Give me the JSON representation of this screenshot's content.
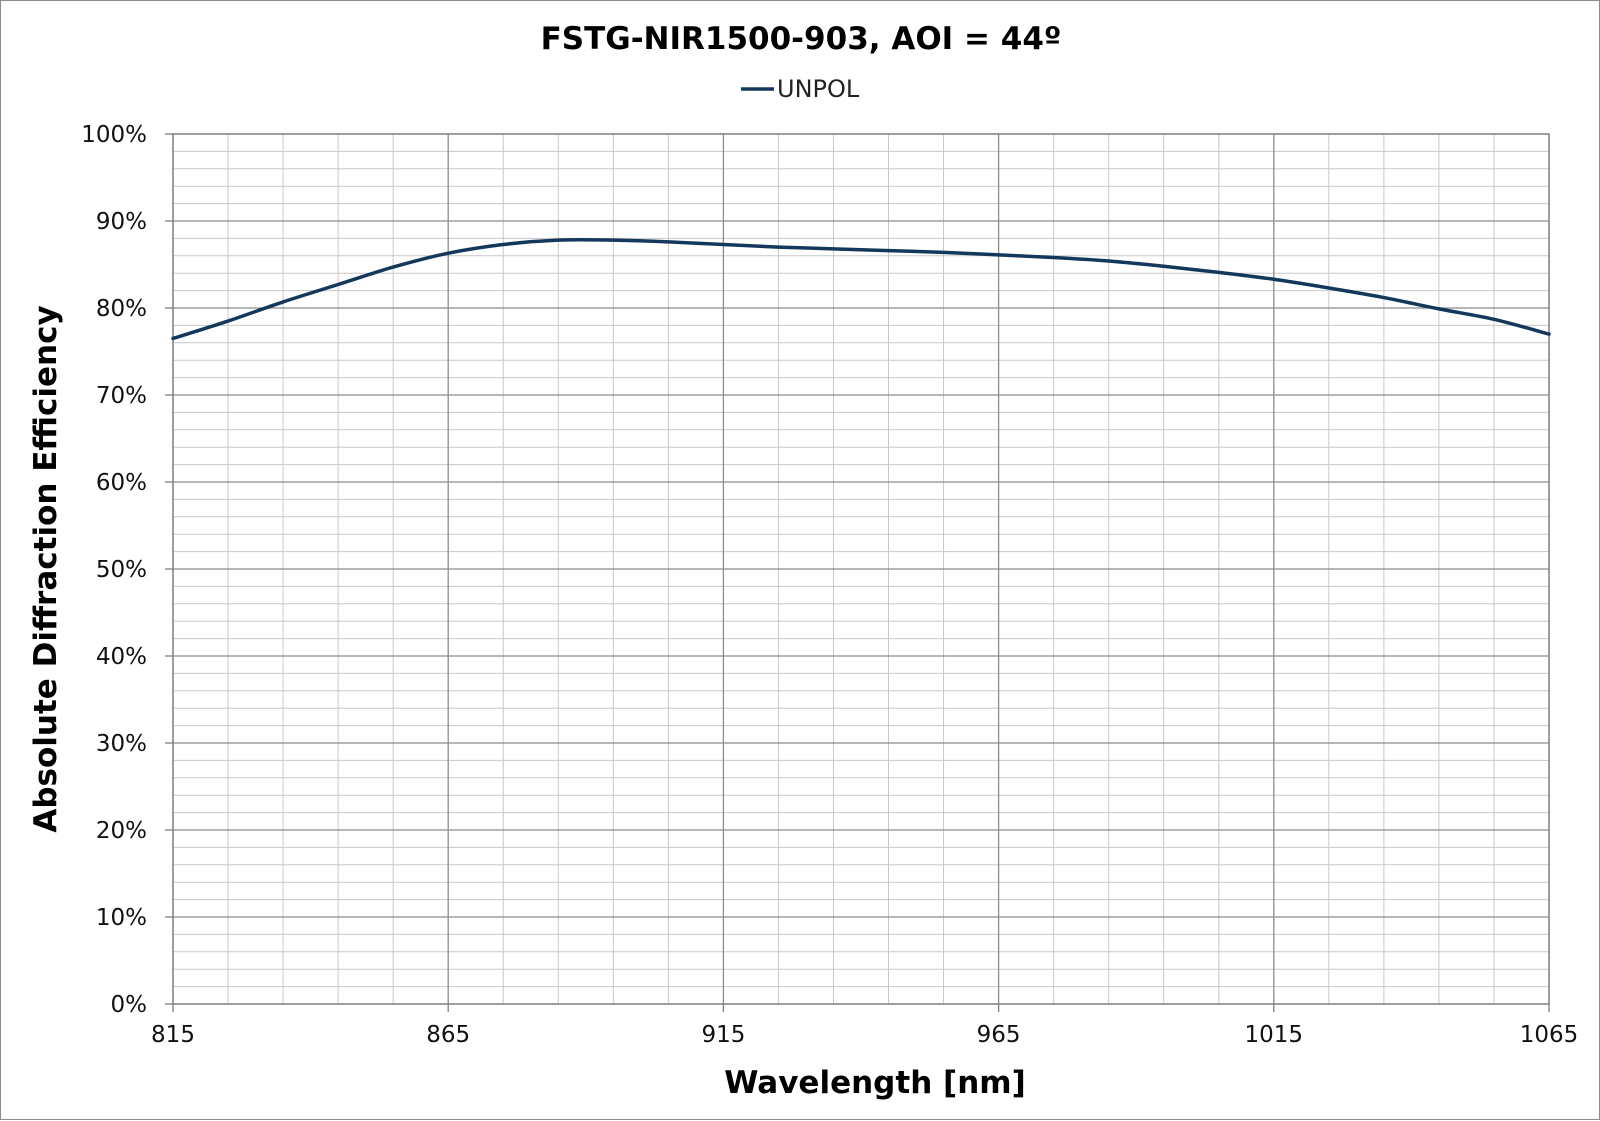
{
  "chart_data": {
    "type": "line",
    "title": "FSTG-NIR1500-903, AOI = 44º",
    "xlabel": "Wavelength [nm]",
    "ylabel": "Absolute Diffraction Efficiency",
    "xlim": [
      815,
      1065
    ],
    "ylim": [
      0,
      100
    ],
    "x_ticks": [
      "815",
      "865",
      "915",
      "965",
      "1015",
      "1065"
    ],
    "y_ticks": [
      "0%",
      "10%",
      "20%",
      "30%",
      "40%",
      "50%",
      "60%",
      "70%",
      "80%",
      "90%",
      "100%"
    ],
    "grid": "on",
    "legend_position": "top-center",
    "series": [
      {
        "name": "UNPOL",
        "color": "#14385c",
        "x": [
          815,
          825,
          835,
          845,
          855,
          865,
          875,
          885,
          895,
          905,
          915,
          925,
          935,
          945,
          955,
          965,
          975,
          985,
          995,
          1005,
          1015,
          1025,
          1035,
          1045,
          1055,
          1065
        ],
        "y": [
          76.5,
          78.5,
          80.7,
          82.7,
          84.7,
          86.3,
          87.3,
          87.8,
          87.8,
          87.6,
          87.3,
          87.0,
          86.8,
          86.6,
          86.4,
          86.1,
          85.8,
          85.4,
          84.8,
          84.1,
          83.3,
          82.3,
          81.2,
          79.9,
          78.7,
          77.0
        ]
      }
    ]
  }
}
